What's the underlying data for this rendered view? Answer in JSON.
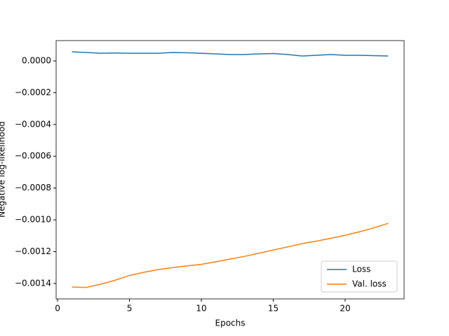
{
  "chart_data": {
    "type": "line",
    "xlabel": "Epochs",
    "ylabel": "Negative log-likelihood",
    "x": [
      1,
      2,
      3,
      4,
      5,
      6,
      7,
      8,
      9,
      10,
      11,
      12,
      13,
      14,
      15,
      16,
      17,
      18,
      19,
      20,
      21,
      22,
      23
    ],
    "series": [
      {
        "name": "Loss",
        "color": "#1f77b4",
        "values": [
          5.7e-05,
          5.3e-05,
          4.8e-05,
          5e-05,
          4.8e-05,
          4.8e-05,
          4.8e-05,
          5.3e-05,
          5.1e-05,
          4.8e-05,
          4.4e-05,
          4e-05,
          4e-05,
          4.4e-05,
          4.6e-05,
          4e-05,
          3.1e-05,
          3.5e-05,
          4e-05,
          3.5e-05,
          3.5e-05,
          3.3e-05,
          3.1e-05
        ]
      },
      {
        "name": "Val. loss",
        "color": "#ff7f0e",
        "values": [
          -0.001423,
          -0.001425,
          -0.001405,
          -0.00138,
          -0.00135,
          -0.00133,
          -0.001313,
          -0.0013,
          -0.00129,
          -0.00128,
          -0.001264,
          -0.001247,
          -0.00123,
          -0.00121,
          -0.00119,
          -0.00117,
          -0.00115,
          -0.001134,
          -0.001116,
          -0.001097,
          -0.001075,
          -0.00105,
          -0.001022
        ]
      }
    ],
    "xlim": [
      -0.1,
      24.1
    ],
    "xticks": [
      0,
      5,
      10,
      15,
      20
    ],
    "ylim": [
      -0.0014973,
      0.0001277
    ],
    "yticks": [
      {
        "value": 0,
        "label": "0.0000"
      },
      {
        "value": -0.0002,
        "label": "−0.0002"
      },
      {
        "value": -0.0004,
        "label": "−0.0004"
      },
      {
        "value": -0.0006,
        "label": "−0.0006"
      },
      {
        "value": -0.0008,
        "label": "−0.0008"
      },
      {
        "value": -0.001,
        "label": "−0.0010"
      },
      {
        "value": -0.0012,
        "label": "−0.0012"
      },
      {
        "value": -0.0014,
        "label": "−0.0014"
      }
    ],
    "legend": "lower right"
  }
}
